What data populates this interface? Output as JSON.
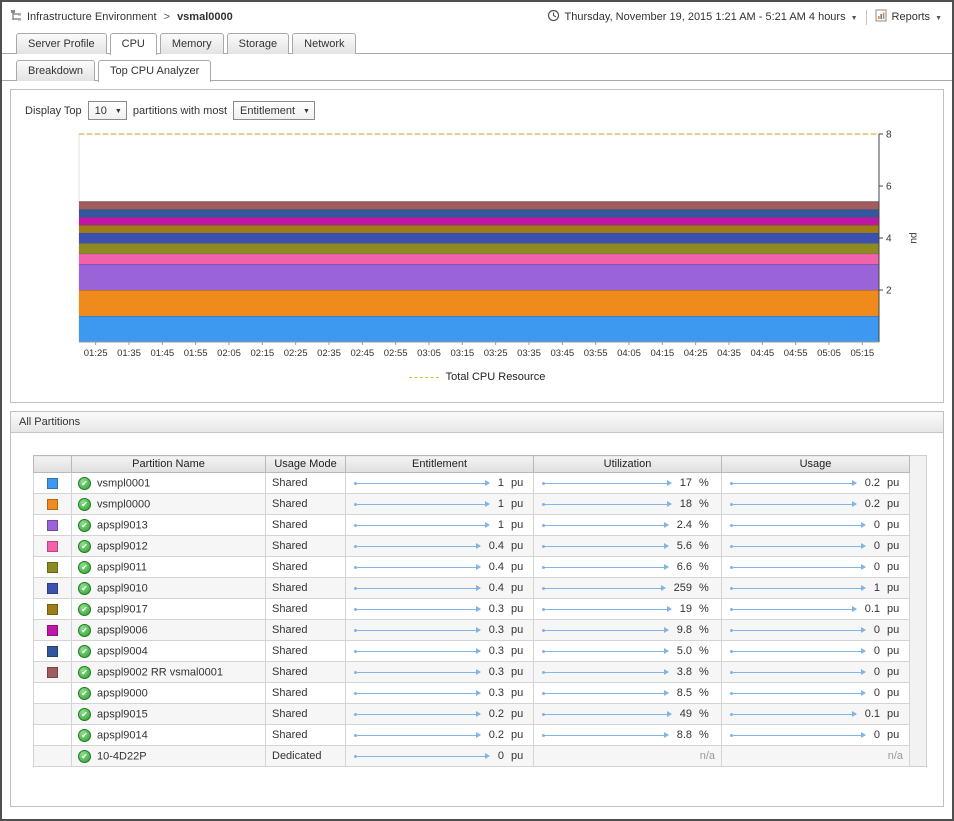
{
  "header": {
    "breadcrumb_root": "Infrastructure Environment",
    "breadcrumb_sep": ">",
    "breadcrumb_current": "vsmal0000",
    "timerange_label": "Thursday, November 19, 2015 1:21 AM - 5:21 AM 4 hours",
    "reports_label": "Reports"
  },
  "tabs": [
    {
      "label": "Server Profile",
      "active": false
    },
    {
      "label": "CPU",
      "active": true
    },
    {
      "label": "Memory",
      "active": false
    },
    {
      "label": "Storage",
      "active": false
    },
    {
      "label": "Network",
      "active": false
    }
  ],
  "subtabs": [
    {
      "label": "Breakdown",
      "active": false
    },
    {
      "label": "Top CPU Analyzer",
      "active": true
    }
  ],
  "controls": {
    "display_top_label": "Display Top",
    "top_count": "10",
    "middle_label": "partitions with most",
    "metric": "Entitlement"
  },
  "chart_data": {
    "type": "area",
    "stacked": true,
    "x": [
      "01:25",
      "01:35",
      "01:45",
      "01:55",
      "02:05",
      "02:15",
      "02:25",
      "02:35",
      "02:45",
      "02:55",
      "03:05",
      "03:15",
      "03:25",
      "03:35",
      "03:45",
      "03:55",
      "04:05",
      "04:15",
      "04:25",
      "04:35",
      "04:45",
      "04:55",
      "05:05",
      "05:15"
    ],
    "series": [
      {
        "name": "vsmpl0001",
        "color": "#3d98ef",
        "value": 1.0
      },
      {
        "name": "vsmpl0000",
        "color": "#ef8a1c",
        "value": 1.0
      },
      {
        "name": "apspl9013",
        "color": "#9a63d8",
        "value": 1.0
      },
      {
        "name": "apspl9012",
        "color": "#f062aa",
        "value": 0.4
      },
      {
        "name": "apspl9011",
        "color": "#8b8b22",
        "value": 0.4
      },
      {
        "name": "apspl9010",
        "color": "#3c50b0",
        "value": 0.4
      },
      {
        "name": "apspl9017",
        "color": "#9c7d16",
        "value": 0.3
      },
      {
        "name": "apspl9006",
        "color": "#c016a8",
        "value": 0.3
      },
      {
        "name": "apspl9004",
        "color": "#31589f",
        "value": 0.3
      },
      {
        "name": "apspl9002 RR vsmal0001",
        "color": "#a35c5c",
        "value": 0.3
      }
    ],
    "total_line": {
      "label": "Total CPU Resource",
      "value": 8,
      "color": "#ddb33c"
    },
    "ylabel": "pu",
    "ylim": [
      0,
      8
    ],
    "yticks": [
      2,
      4,
      6,
      8
    ],
    "legend_position": "bottom"
  },
  "partitions_panel": {
    "title": "All Partitions",
    "columns": [
      "Partition Name",
      "Usage Mode",
      "Entitlement",
      "Utilization",
      "Usage"
    ],
    "rows": [
      {
        "color": "#3d98ef",
        "name": "vsmpl0001",
        "mode": "Shared",
        "ent": "1",
        "ent_u": "pu",
        "util": "17",
        "util_u": "%",
        "usage": "0.2",
        "usage_u": "pu"
      },
      {
        "color": "#ef8a1c",
        "name": "vsmpl0000",
        "mode": "Shared",
        "ent": "1",
        "ent_u": "pu",
        "util": "18",
        "util_u": "%",
        "usage": "0.2",
        "usage_u": "pu"
      },
      {
        "color": "#9a63d8",
        "name": "apspl9013",
        "mode": "Shared",
        "ent": "1",
        "ent_u": "pu",
        "util": "2.4",
        "util_u": "%",
        "usage": "0",
        "usage_u": "pu"
      },
      {
        "color": "#f062aa",
        "name": "apspl9012",
        "mode": "Shared",
        "ent": "0.4",
        "ent_u": "pu",
        "util": "5.6",
        "util_u": "%",
        "usage": "0",
        "usage_u": "pu"
      },
      {
        "color": "#8b8b22",
        "name": "apspl9011",
        "mode": "Shared",
        "ent": "0.4",
        "ent_u": "pu",
        "util": "6.6",
        "util_u": "%",
        "usage": "0",
        "usage_u": "pu"
      },
      {
        "color": "#3c50b0",
        "name": "apspl9010",
        "mode": "Shared",
        "ent": "0.4",
        "ent_u": "pu",
        "util": "259",
        "util_u": "%",
        "usage": "1",
        "usage_u": "pu"
      },
      {
        "color": "#9c7d16",
        "name": "apspl9017",
        "mode": "Shared",
        "ent": "0.3",
        "ent_u": "pu",
        "util": "19",
        "util_u": "%",
        "usage": "0.1",
        "usage_u": "pu"
      },
      {
        "color": "#c016a8",
        "name": "apspl9006",
        "mode": "Shared",
        "ent": "0.3",
        "ent_u": "pu",
        "util": "9.8",
        "util_u": "%",
        "usage": "0",
        "usage_u": "pu"
      },
      {
        "color": "#31589f",
        "name": "apspl9004",
        "mode": "Shared",
        "ent": "0.3",
        "ent_u": "pu",
        "util": "5.0",
        "util_u": "%",
        "usage": "0",
        "usage_u": "pu"
      },
      {
        "color": "#a35c5c",
        "name": "apspl9002 RR vsmal0001",
        "mode": "Shared",
        "ent": "0.3",
        "ent_u": "pu",
        "util": "3.8",
        "util_u": "%",
        "usage": "0",
        "usage_u": "pu"
      },
      {
        "color": null,
        "name": "apspl9000",
        "mode": "Shared",
        "ent": "0.3",
        "ent_u": "pu",
        "util": "8.5",
        "util_u": "%",
        "usage": "0",
        "usage_u": "pu"
      },
      {
        "color": null,
        "name": "apspl9015",
        "mode": "Shared",
        "ent": "0.2",
        "ent_u": "pu",
        "util": "49",
        "util_u": "%",
        "usage": "0.1",
        "usage_u": "pu"
      },
      {
        "color": null,
        "name": "apspl9014",
        "mode": "Shared",
        "ent": "0.2",
        "ent_u": "pu",
        "util": "8.8",
        "util_u": "%",
        "usage": "0",
        "usage_u": "pu"
      },
      {
        "color": null,
        "name": "10-4D22P",
        "mode": "Dedicated",
        "ent": "0",
        "ent_u": "pu",
        "util": "n/a",
        "util_u": "",
        "usage": "n/a",
        "usage_u": ""
      }
    ]
  }
}
